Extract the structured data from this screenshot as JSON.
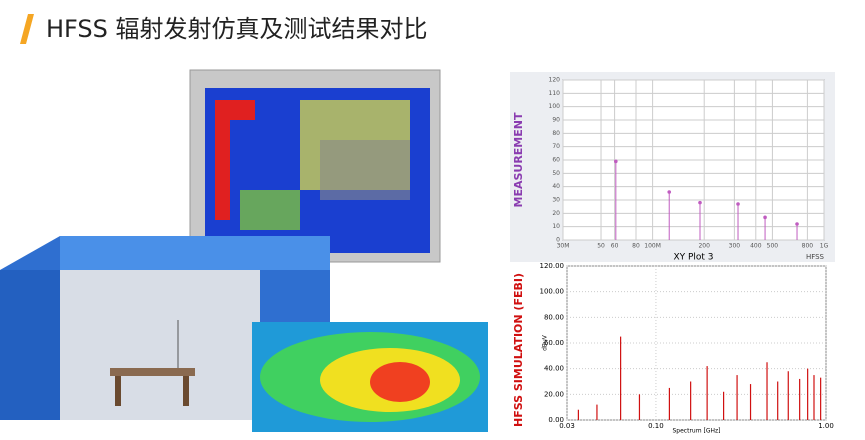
{
  "header": {
    "title": "HFSS 辐射发射仿真及测试结果对比"
  },
  "chart_data": [
    {
      "type": "spectrum",
      "side_label": "MEASUREMENT",
      "title": "XY Plot 3",
      "watermark": "HFSS",
      "xscale": "log",
      "xlim": [
        30,
        1000
      ],
      "xticks": [
        {
          "value": 30,
          "label": "30M"
        },
        50,
        60,
        80,
        {
          "value": 100,
          "label": "100M"
        },
        200,
        300,
        400,
        500,
        800,
        {
          "value": 1000,
          "label": "1G"
        }
      ],
      "ylim": [
        0,
        120
      ],
      "yticks": [
        0,
        10,
        20,
        30,
        40,
        50,
        60,
        70,
        80,
        90,
        100,
        110,
        120
      ],
      "grid": true,
      "series": [
        {
          "color": "#c05cc0",
          "x": [
            61,
            125,
            189,
            315,
            453,
            696
          ],
          "values": [
            59,
            36,
            28,
            27,
            17,
            12
          ]
        }
      ]
    },
    {
      "type": "spectrum",
      "side_label": "HFSS SIMULATION (FEBI)",
      "xlabel": "Spectrum [GHz]",
      "ylabel": "dBuV",
      "xscale": "log",
      "xlim": [
        0.03,
        1
      ],
      "xticks": [
        0.03,
        {
          "value": 0.1,
          "label": "0.10"
        },
        {
          "value": 1,
          "label": "1.00"
        }
      ],
      "ylim": [
        0,
        120
      ],
      "yticks": [
        {
          "value": 0,
          "label": "0.00"
        },
        {
          "value": 20,
          "label": "20.00"
        },
        {
          "value": 40,
          "label": "40.00"
        },
        {
          "value": 60,
          "label": "60.00"
        },
        {
          "value": 80,
          "label": "80.00"
        },
        {
          "value": 100,
          "label": "100.00"
        },
        {
          "value": 120,
          "label": "120.00"
        }
      ],
      "grid": true,
      "series": [
        {
          "color": "#d01010",
          "x": [
            0.035,
            0.045,
            0.062,
            0.08,
            0.12,
            0.16,
            0.2,
            0.25,
            0.3,
            0.36,
            0.45,
            0.52,
            0.6,
            0.7,
            0.78,
            0.85,
            0.93
          ],
          "values": [
            8,
            12,
            65,
            20,
            25,
            30,
            42,
            22,
            35,
            28,
            45,
            30,
            38,
            32,
            40,
            35,
            33
          ]
        }
      ]
    }
  ]
}
